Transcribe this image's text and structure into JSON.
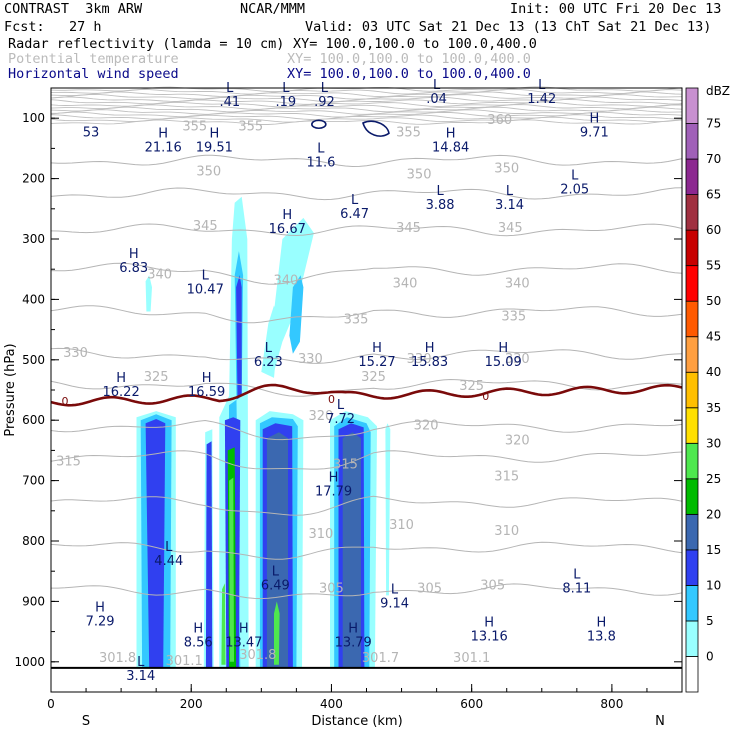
{
  "header": {
    "model": "CONTRAST  3km ARW",
    "center": "NCAR/MMM",
    "init": "Init: 00 UTC Fri 20 Dec 13",
    "fcst": "Fcst:   27 h",
    "valid": "Valid: 03 UTC Sat 21 Dec 13 (13 ChT Sat 21 Dec 13)",
    "field1": "Radar reflectivity (lamda = 10 cm)",
    "field1_xy": "XY= 100.0,100.0 to 100.0,400.0",
    "field2": "Potential temperature",
    "field2_xy": "XY= 100.0,100.0 to 100.0,400.0",
    "field3": "Horizontal wind speed",
    "field3_xy": "XY= 100.0,100.0 to 100.0,400.0"
  },
  "chart_data": {
    "type": "heatmap",
    "xlabel": "Distance (km)",
    "ylabel": "Pressure (hPa)",
    "xlim": [
      0,
      900
    ],
    "ylim": [
      1050,
      50
    ],
    "x_ticks": [
      "0",
      "200",
      "400",
      "600",
      "800"
    ],
    "y_ticks": [
      "100",
      "200",
      "300",
      "400",
      "500",
      "600",
      "700",
      "800",
      "900",
      "1000"
    ],
    "direction_left": "S",
    "direction_right": "N",
    "colorbar": {
      "unit": "dBZ",
      "levels": [
        "0",
        "5",
        "10",
        "15",
        "20",
        "25",
        "30",
        "35",
        "40",
        "45",
        "50",
        "55",
        "60",
        "65",
        "70",
        "75"
      ],
      "colors": [
        "#ffffff",
        "#99ffff",
        "#33c8ff",
        "#3040f0",
        "#3b68b0",
        "#00bb00",
        "#4ee84e",
        "#ffe000",
        "#ffbf00",
        "#ff9f40",
        "#ff5a00",
        "#ff0000",
        "#c70000",
        "#a03040",
        "#8c2890",
        "#a060b8",
        "#c890d0"
      ]
    },
    "theta_labels": [
      {
        "x": 205,
        "p": 120,
        "text": "355"
      },
      {
        "x": 285,
        "p": 120,
        "text": "355"
      },
      {
        "x": 640,
        "p": 110,
        "text": "360"
      },
      {
        "x": 650,
        "p": 190,
        "text": "350"
      },
      {
        "x": 510,
        "p": 130,
        "text": "355"
      },
      {
        "x": 225,
        "p": 195,
        "text": "350"
      },
      {
        "x": 525,
        "p": 200,
        "text": "350"
      },
      {
        "x": 220,
        "p": 285,
        "text": "345"
      },
      {
        "x": 655,
        "p": 288,
        "text": "345"
      },
      {
        "x": 510,
        "p": 288,
        "text": "345"
      },
      {
        "x": 155,
        "p": 365,
        "text": "340"
      },
      {
        "x": 335,
        "p": 375,
        "text": "340"
      },
      {
        "x": 505,
        "p": 380,
        "text": "340"
      },
      {
        "x": 665,
        "p": 380,
        "text": "340"
      },
      {
        "x": 660,
        "p": 435,
        "text": "335"
      },
      {
        "x": 435,
        "p": 440,
        "text": "335"
      },
      {
        "x": 35,
        "p": 495,
        "text": "330"
      },
      {
        "x": 370,
        "p": 505,
        "text": "330"
      },
      {
        "x": 525,
        "p": 505,
        "text": "330"
      },
      {
        "x": 665,
        "p": 505,
        "text": "330"
      },
      {
        "x": 150,
        "p": 535,
        "text": "325"
      },
      {
        "x": 460,
        "p": 535,
        "text": "325"
      },
      {
        "x": 600,
        "p": 550,
        "text": "325"
      },
      {
        "x": 385,
        "p": 600,
        "text": "320"
      },
      {
        "x": 535,
        "p": 615,
        "text": "320"
      },
      {
        "x": 665,
        "p": 640,
        "text": "320"
      },
      {
        "x": 25,
        "p": 675,
        "text": "315"
      },
      {
        "x": 420,
        "p": 680,
        "text": "315"
      },
      {
        "x": 650,
        "p": 700,
        "text": "315"
      },
      {
        "x": 500,
        "p": 780,
        "text": "310"
      },
      {
        "x": 385,
        "p": 795,
        "text": "310"
      },
      {
        "x": 650,
        "p": 790,
        "text": "310"
      },
      {
        "x": 400,
        "p": 885,
        "text": "305"
      },
      {
        "x": 540,
        "p": 885,
        "text": "305"
      },
      {
        "x": 630,
        "p": 880,
        "text": "305"
      },
      {
        "x": 95,
        "p": 1000,
        "text": "301.8"
      },
      {
        "x": 190,
        "p": 1005,
        "text": "301.1"
      },
      {
        "x": 295,
        "p": 995,
        "text": "301.8"
      },
      {
        "x": 470,
        "p": 1000,
        "text": "301.7"
      },
      {
        "x": 600,
        "p": 1000,
        "text": "301.1"
      }
    ],
    "wind_extrema": [
      {
        "x": 255,
        "p": 80,
        "hl": "L",
        "value": ".41"
      },
      {
        "x": 335,
        "p": 80,
        "hl": "L",
        "value": ".19"
      },
      {
        "x": 390,
        "p": 80,
        "hl": "L",
        "value": ".92"
      },
      {
        "x": 550,
        "p": 75,
        "hl": "L",
        "value": ".04"
      },
      {
        "x": 700,
        "p": 75,
        "hl": "L",
        "value": "1.42"
      },
      {
        "x": 57,
        "p": 130,
        "hl": "",
        "value": "53"
      },
      {
        "x": 160,
        "p": 155,
        "hl": "H",
        "value": "21.16"
      },
      {
        "x": 233,
        "p": 155,
        "hl": "H",
        "value": "19.51"
      },
      {
        "x": 385,
        "p": 180,
        "hl": "L",
        "value": "11.6"
      },
      {
        "x": 570,
        "p": 155,
        "hl": "H",
        "value": "14.84"
      },
      {
        "x": 775,
        "p": 130,
        "hl": "H",
        "value": "9.71"
      },
      {
        "x": 433,
        "p": 265,
        "hl": "L",
        "value": "6.47"
      },
      {
        "x": 555,
        "p": 250,
        "hl": "L",
        "value": "3.88"
      },
      {
        "x": 654,
        "p": 250,
        "hl": "L",
        "value": "3.14"
      },
      {
        "x": 747,
        "p": 225,
        "hl": "L",
        "value": "2.05"
      },
      {
        "x": 337,
        "p": 290,
        "hl": "H",
        "value": "16.67"
      },
      {
        "x": 118,
        "p": 355,
        "hl": "H",
        "value": "6.83"
      },
      {
        "x": 220,
        "p": 390,
        "hl": "L",
        "value": "10.47"
      },
      {
        "x": 310,
        "p": 510,
        "hl": "L",
        "value": "6.23"
      },
      {
        "x": 465,
        "p": 510,
        "hl": "H",
        "value": "15.27"
      },
      {
        "x": 540,
        "p": 510,
        "hl": "H",
        "value": "15.83"
      },
      {
        "x": 645,
        "p": 510,
        "hl": "H",
        "value": "15.09"
      },
      {
        "x": 100,
        "p": 560,
        "hl": "H",
        "value": "16.22"
      },
      {
        "x": 222,
        "p": 560,
        "hl": "H",
        "value": "16.59"
      },
      {
        "x": 413,
        "p": 605,
        "hl": "L",
        "value": "7.72"
      },
      {
        "x": 403,
        "p": 725,
        "hl": "H",
        "value": "17.79"
      },
      {
        "x": 168,
        "p": 840,
        "hl": "L",
        "value": "4.44"
      },
      {
        "x": 320,
        "p": 880,
        "hl": "L",
        "value": "6.49"
      },
      {
        "x": 490,
        "p": 910,
        "hl": "L",
        "value": "9.14"
      },
      {
        "x": 750,
        "p": 885,
        "hl": "L",
        "value": "8.11"
      },
      {
        "x": 70,
        "p": 940,
        "hl": "H",
        "value": "7.29"
      },
      {
        "x": 210,
        "p": 975,
        "hl": "H",
        "value": "8.56"
      },
      {
        "x": 275,
        "p": 975,
        "hl": "H",
        "value": "13.47"
      },
      {
        "x": 431,
        "p": 975,
        "hl": "H",
        "value": "13.79"
      },
      {
        "x": 625,
        "p": 965,
        "hl": "H",
        "value": "13.16"
      },
      {
        "x": 785,
        "p": 965,
        "hl": "H",
        "value": "13.8"
      },
      {
        "x": 128,
        "p": 1030,
        "hl": "L",
        "value": "3.14"
      }
    ],
    "zero_labels": [
      {
        "x": 20,
        "p": 568,
        "text": "0"
      },
      {
        "x": 400,
        "p": 565,
        "text": "0"
      },
      {
        "x": 620,
        "p": 560,
        "text": "0"
      }
    ]
  }
}
